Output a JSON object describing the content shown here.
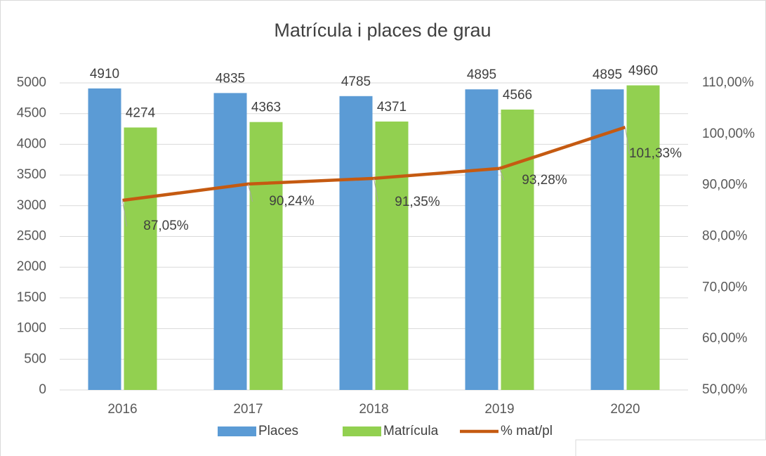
{
  "chart_data": {
    "type": "bar-line",
    "title": "Matrícula i places de grau",
    "categories": [
      "2016",
      "2017",
      "2018",
      "2019",
      "2020"
    ],
    "series": [
      {
        "name": "Places",
        "type": "bar",
        "color": "#5b9bd5",
        "values": [
          4910,
          4835,
          4785,
          4895,
          4895
        ]
      },
      {
        "name": "Matrícula",
        "type": "bar",
        "color": "#92d050",
        "values": [
          4274,
          4363,
          4371,
          4566,
          4960
        ]
      },
      {
        "name": "% mat/pl",
        "type": "line",
        "axis": "y2",
        "color": "#c55a11",
        "values": [
          87.05,
          90.24,
          91.35,
          93.28,
          101.33
        ],
        "value_labels": [
          "87,05%",
          "90,24%",
          "91,35%",
          "93,28%",
          "101,33%"
        ]
      }
    ],
    "ylim": [
      0,
      5000
    ],
    "yticks": [
      0,
      500,
      1000,
      1500,
      2000,
      2500,
      3000,
      3500,
      4000,
      4500,
      5000
    ],
    "y2lim": [
      50,
      110
    ],
    "y2ticks": [
      {
        "value": 50,
        "label": "50,00%"
      },
      {
        "value": 60,
        "label": "60,00%"
      },
      {
        "value": 70,
        "label": "70,00%"
      },
      {
        "value": 80,
        "label": "80,00%"
      },
      {
        "value": 90,
        "label": "90,00%"
      },
      {
        "value": 100,
        "label": "100,00%"
      },
      {
        "value": 110,
        "label": "110,00%"
      }
    ],
    "grid": true,
    "legend": "bottom"
  }
}
